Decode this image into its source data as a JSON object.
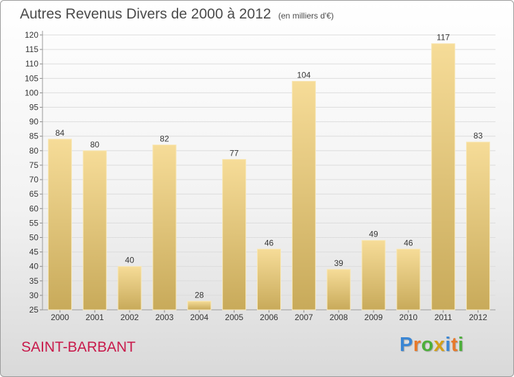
{
  "title": "Autres Revenus Divers de 2000 à 2012",
  "subtitle": "(en milliers d'€)",
  "commune": "SAINT-BARBANT",
  "logo": {
    "letters": [
      "P",
      "r",
      "o",
      "x",
      "i",
      "t",
      "i"
    ],
    "colors": [
      "#3a86d4",
      "#e8792a",
      "#4caf3a",
      "#d4a017",
      "#3a86d4",
      "#e8792a",
      "#4caf3a"
    ]
  },
  "colors": {
    "bar_light": "#f6dc98",
    "bar_dark": "#c8aa5a",
    "commune_text": "#c8184a"
  },
  "chart_data": {
    "type": "bar",
    "categories": [
      "2000",
      "2001",
      "2002",
      "2003",
      "2004",
      "2005",
      "2006",
      "2007",
      "2008",
      "2009",
      "2010",
      "2011",
      "2012"
    ],
    "values": [
      84,
      80,
      40,
      82,
      28,
      77,
      46,
      104,
      39,
      49,
      46,
      117,
      83
    ],
    "ylim": [
      25,
      120
    ],
    "yticks": [
      25,
      30,
      35,
      40,
      45,
      50,
      55,
      60,
      65,
      70,
      75,
      80,
      85,
      90,
      95,
      100,
      105,
      110,
      115,
      120
    ],
    "grid": true,
    "legend": "none"
  }
}
